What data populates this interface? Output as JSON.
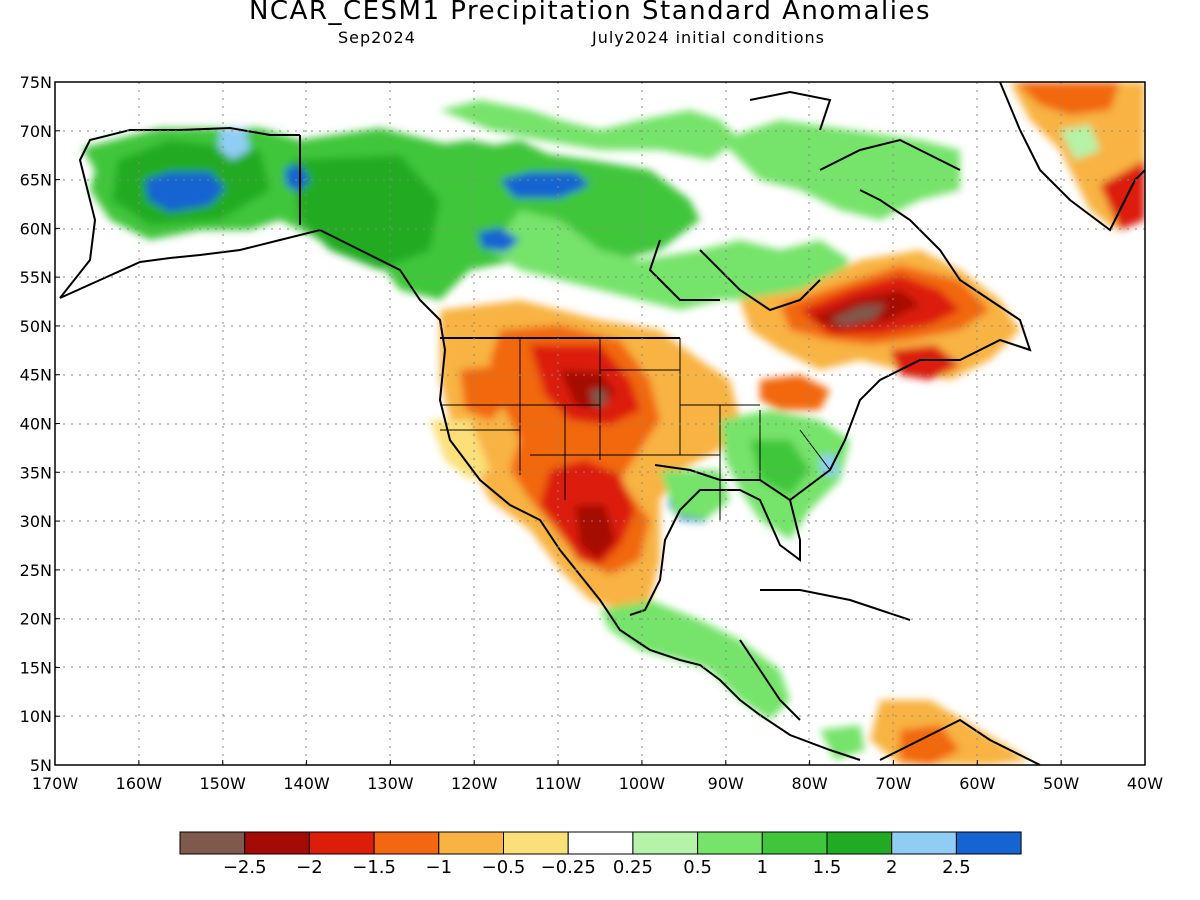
{
  "header": {
    "title": "NCAR_CESM1 Precipitation Standard Anomalies",
    "valid_month": "Sep2024",
    "initial_conditions": "July2024 initial conditions"
  },
  "axes": {
    "lat_labels": [
      "75N",
      "70N",
      "65N",
      "60N",
      "55N",
      "50N",
      "45N",
      "40N",
      "35N",
      "30N",
      "25N",
      "20N",
      "15N",
      "10N",
      "5N"
    ],
    "lon_labels": [
      "170W",
      "160W",
      "150W",
      "140W",
      "130W",
      "120W",
      "110W",
      "100W",
      "90W",
      "80W",
      "70W",
      "60W",
      "50W",
      "40W"
    ],
    "lat_range": [
      5,
      75
    ],
    "lon_range": [
      -170,
      -40
    ],
    "grid": "dotted"
  },
  "legend": {
    "colors": [
      "#7f5a4c",
      "#a50b05",
      "#dc1d0a",
      "#f2670f",
      "#f8b342",
      "#fbe07a",
      "#ffffff",
      "#b4f3a8",
      "#76e36a",
      "#3fc63b",
      "#21ab24",
      "#90cdf5",
      "#1464d2"
    ],
    "labels": [
      "−2.5",
      "−2",
      "−1.5",
      "−1",
      "−0.5",
      "−0.25",
      "0.25",
      "0.5",
      "1",
      "1.5",
      "2",
      "2.5"
    ]
  },
  "colors": {
    "dry_extreme": "#7f5a4c",
    "wet_extreme": "#1464d2",
    "frame": "#000000"
  }
}
